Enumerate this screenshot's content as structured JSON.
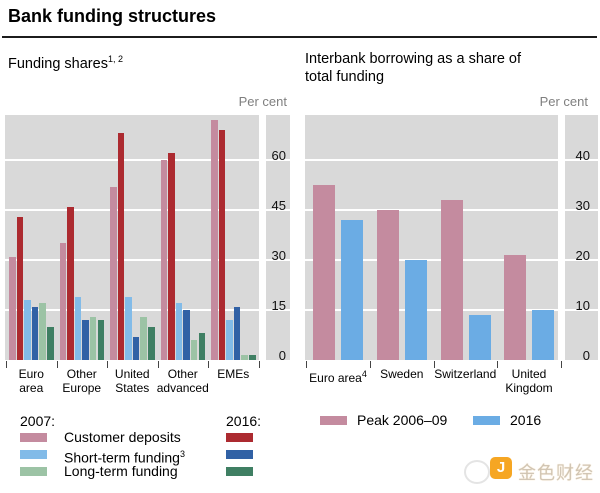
{
  "header": {
    "title": "Bank funding structures"
  },
  "watermark": {
    "text": "金色财经",
    "icon_letter": "J"
  },
  "colors": {
    "panel_bg": "#d9d9d9",
    "gridline": "#ffffff",
    "deposits_2007": "#c48b9f",
    "deposits_2016": "#ac2a30",
    "short_term_2007": "#82bbe8",
    "short_term_2016": "#3161a5",
    "long_term_2007": "#9cc3a5",
    "long_term_2016": "#3f7f63",
    "right_2016_blue": "#6bace4",
    "unit_label_gray": "#7f7f7f"
  },
  "chart_data": [
    {
      "type": "bar",
      "title": "Funding shares",
      "title_sup": "1, 2",
      "unit_label": "Per cent",
      "grid": true,
      "ylim": [
        0,
        73.5
      ],
      "yticks": [
        0,
        15,
        30,
        45,
        60
      ],
      "categories": [
        {
          "lines": [
            "Euro",
            "area"
          ]
        },
        {
          "lines": [
            "Other",
            "Europe"
          ]
        },
        {
          "lines": [
            "United",
            "States"
          ]
        },
        {
          "lines": [
            "Other",
            "advanced"
          ]
        },
        {
          "lines": [
            "EMEs"
          ]
        }
      ],
      "series": [
        {
          "name": "Customer deposits 2007",
          "color": "#c48b9f",
          "values": [
            31,
            35,
            52,
            60,
            72
          ]
        },
        {
          "name": "Customer deposits 2016",
          "color": "#ac2a30",
          "values": [
            43,
            46,
            68,
            62,
            69
          ]
        },
        {
          "name": "Short-term funding 2007",
          "color": "#82bbe8",
          "values": [
            18,
            19,
            19,
            17,
            12
          ]
        },
        {
          "name": "Short-term funding 2016",
          "color": "#3161a5",
          "values": [
            16,
            12,
            7,
            15,
            16
          ]
        },
        {
          "name": "Long-term funding 2007",
          "color": "#9cc3a5",
          "values": [
            17,
            13,
            13,
            6,
            1.5
          ]
        },
        {
          "name": "Long-term funding 2016",
          "color": "#3f7f63",
          "values": [
            10,
            12,
            10,
            8,
            1.5
          ]
        }
      ]
    },
    {
      "type": "bar",
      "title": "Interbank borrowing as a share of total funding",
      "title_sup": "",
      "unit_label": "Per cent",
      "grid": true,
      "ylim": [
        0,
        49
      ],
      "yticks": [
        0,
        10,
        20,
        30,
        40
      ],
      "categories": [
        {
          "lines": [
            "Euro area"
          ],
          "sup": "4"
        },
        {
          "lines": [
            "Sweden"
          ]
        },
        {
          "lines": [
            "Switzerland"
          ]
        },
        {
          "lines": [
            "United",
            "Kingdom"
          ]
        }
      ],
      "series": [
        {
          "name": "Peak 2006–09",
          "color": "#c48b9f",
          "values": [
            35,
            30,
            32,
            21
          ]
        },
        {
          "name": "2016",
          "color": "#6bace4",
          "values": [
            28,
            20,
            9,
            10
          ]
        }
      ]
    }
  ],
  "legend_left": {
    "col_2007_header": "2007:",
    "col_2016_header": "2016:",
    "rows": [
      {
        "label": "Customer deposits",
        "sup": "",
        "color_2007": "#c48b9f",
        "color_2016": "#ac2a30"
      },
      {
        "label": "Short-term funding",
        "sup": "3",
        "color_2007": "#82bbe8",
        "color_2016": "#3161a5"
      },
      {
        "label": "Long-term funding",
        "sup": "",
        "color_2007": "#9cc3a5",
        "color_2016": "#3f7f63"
      }
    ]
  },
  "legend_right": {
    "items": [
      {
        "label": "Peak 2006–09",
        "color": "#c48b9f"
      },
      {
        "label": "2016",
        "color": "#6bace4"
      }
    ]
  }
}
